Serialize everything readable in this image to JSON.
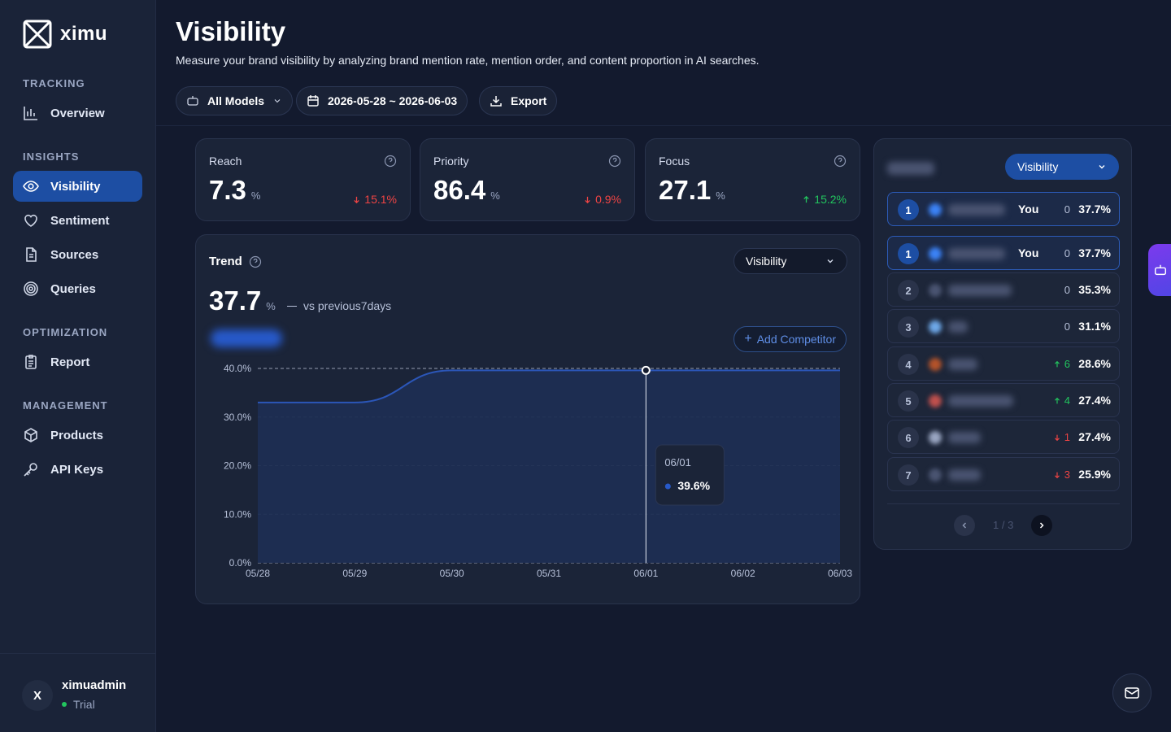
{
  "app": {
    "name": "ximu"
  },
  "sidebar": {
    "sections": [
      {
        "title": "TRACKING"
      },
      {
        "title": "INSIGHTS"
      },
      {
        "title": "OPTIMIZATION"
      },
      {
        "title": "MANAGEMENT"
      }
    ],
    "items": [
      {
        "label": "Overview",
        "icon": "chart-bars-icon"
      },
      {
        "label": "Visibility",
        "icon": "eye-icon",
        "active": true
      },
      {
        "label": "Sentiment",
        "icon": "heart-icon"
      },
      {
        "label": "Sources",
        "icon": "document-icon"
      },
      {
        "label": "Queries",
        "icon": "target-icon"
      },
      {
        "label": "Report",
        "icon": "clipboard-icon"
      },
      {
        "label": "Products",
        "icon": "box-icon"
      },
      {
        "label": "API Keys",
        "icon": "key-icon"
      }
    ],
    "user": {
      "initial": "X",
      "name": "ximuadmin",
      "plan": "Trial"
    }
  },
  "header": {
    "title": "Visibility",
    "description": "Measure your brand visibility by analyzing brand mention rate, mention order, and content proportion in AI searches.",
    "filters": {
      "models": "All Models",
      "date_range": "2026-05-28 ~ 2026-06-03",
      "export": "Export"
    }
  },
  "metrics": [
    {
      "label": "Reach",
      "value": "7.3",
      "unit": "%",
      "delta": "15.1%",
      "direction": "down"
    },
    {
      "label": "Priority",
      "value": "86.4",
      "unit": "%",
      "delta": "0.9%",
      "direction": "down"
    },
    {
      "label": "Focus",
      "value": "27.1",
      "unit": "%",
      "delta": "15.2%",
      "direction": "up"
    }
  ],
  "trend": {
    "title": "Trend",
    "value": "37.7",
    "unit": "%",
    "compare": "vs previous7days",
    "metric_select": "Visibility",
    "add_competitor": "Add Competitor",
    "tooltip": {
      "date": "06/01",
      "value": "39.6%"
    }
  },
  "chart_data": {
    "type": "area",
    "x": [
      "05/28",
      "05/29",
      "05/30",
      "05/31",
      "06/01",
      "06/02",
      "06/03"
    ],
    "series": [
      {
        "values": [
          33.0,
          33.0,
          39.6,
          39.6,
          39.6,
          39.6,
          39.6
        ]
      }
    ],
    "ylim": [
      0,
      40
    ],
    "yticks": [
      "0.0%",
      "10.0%",
      "20.0%",
      "30.0%",
      "40.0%"
    ],
    "grid": true,
    "colors": {
      "line": "#2b56b8",
      "fill": "#1e2e52"
    }
  },
  "ranking": {
    "select": "Visibility",
    "rows": [
      {
        "rank": "1",
        "you": "You",
        "change": "0",
        "direction": "none",
        "pct": "37.7%",
        "highlight": true,
        "icon_color": "#3b82f6",
        "name_width": 70
      },
      {
        "rank": "1",
        "you": "You",
        "change": "0",
        "direction": "none",
        "pct": "37.7%",
        "highlight": true,
        "icon_color": "#3b82f6",
        "name_width": 70
      },
      {
        "rank": "2",
        "you": "",
        "change": "0",
        "direction": "none",
        "pct": "35.3%",
        "highlight": false,
        "icon_color": "#4a5471",
        "name_width": 78
      },
      {
        "rank": "3",
        "you": "",
        "change": "0",
        "direction": "none",
        "pct": "31.1%",
        "highlight": false,
        "icon_color": "#6ea8e8",
        "name_width": 24
      },
      {
        "rank": "4",
        "you": "",
        "change": "6",
        "direction": "up",
        "pct": "28.6%",
        "highlight": false,
        "icon_color": "#b4532a",
        "name_width": 36
      },
      {
        "rank": "5",
        "you": "",
        "change": "4",
        "direction": "up",
        "pct": "27.4%",
        "highlight": false,
        "icon_color": "#c0504d",
        "name_width": 80
      },
      {
        "rank": "6",
        "you": "",
        "change": "1",
        "direction": "down",
        "pct": "27.4%",
        "highlight": false,
        "icon_color": "#9aa6c2",
        "name_width": 40
      },
      {
        "rank": "7",
        "you": "",
        "change": "3",
        "direction": "down",
        "pct": "25.9%",
        "highlight": false,
        "icon_color": "#4a5471",
        "name_width": 40
      }
    ],
    "pager": "1 / 3"
  }
}
